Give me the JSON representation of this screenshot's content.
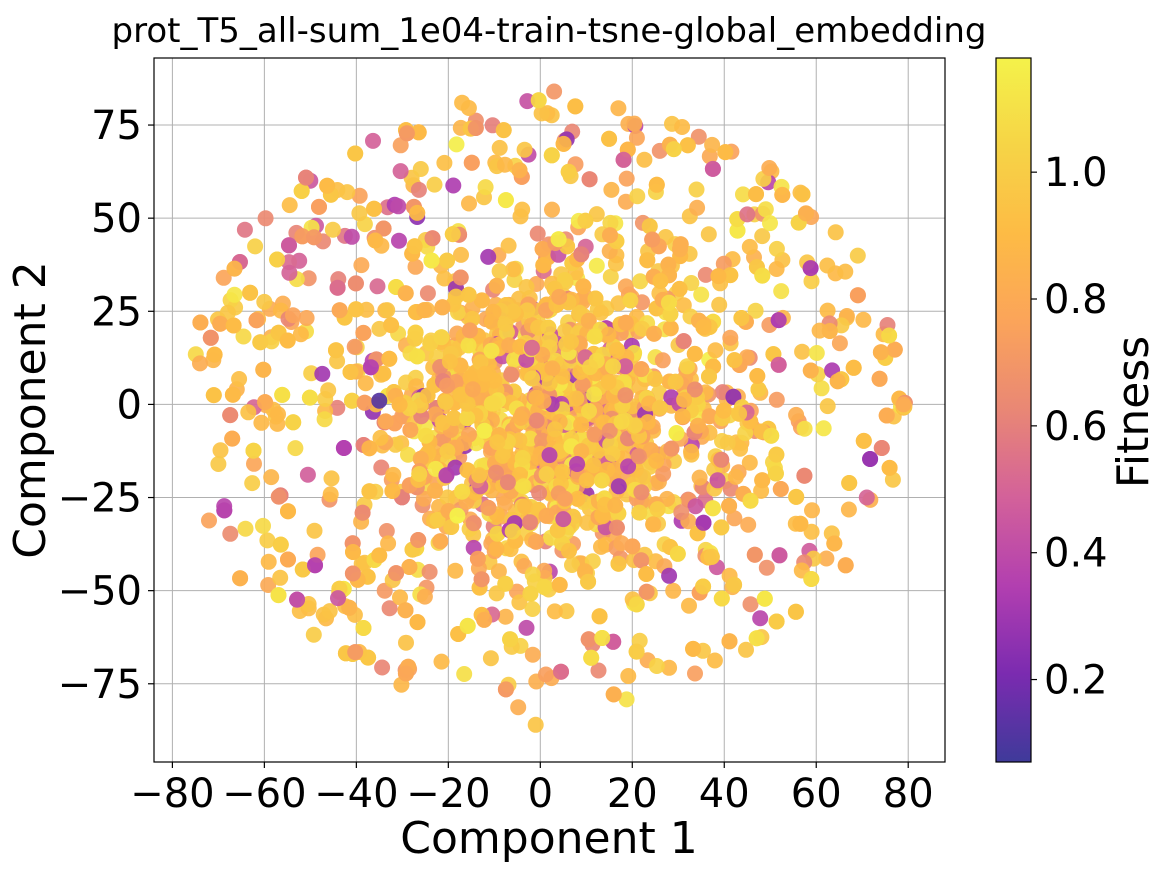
{
  "chart_data": {
    "type": "scatter",
    "title": "prot_T5_all-sum_1e04-train-tsne-global_embedding",
    "xlabel": "Component 1",
    "ylabel": "Component 2",
    "xlim": [
      -84,
      88
    ],
    "ylim": [
      -96,
      93
    ],
    "xticks": [
      -80,
      -60,
      -40,
      -20,
      0,
      20,
      40,
      60,
      80
    ],
    "xtick_labels": [
      "−80",
      "−60",
      "−40",
      "−20",
      "0",
      "20",
      "40",
      "60",
      "80"
    ],
    "yticks": [
      -75,
      -50,
      -25,
      0,
      25,
      50,
      75
    ],
    "ytick_labels": [
      "−75",
      "−50",
      "−25",
      "0",
      "25",
      "50",
      "75"
    ],
    "grid": true,
    "colorbar": {
      "label": "Fitness",
      "range": [
        0.07,
        1.18
      ],
      "ticks": [
        0.2,
        0.4,
        0.6,
        0.8,
        1.0
      ],
      "tick_labels": [
        "0.2",
        "0.4",
        "0.6",
        "0.8",
        "1.0"
      ],
      "colormap": "plasma-clipped",
      "colors": [
        "#3f3a9a",
        "#7b2bb0",
        "#b23fb0",
        "#d3619a",
        "#e98775",
        "#fba45a",
        "#fdbb45",
        "#f6d446",
        "#f4f24a"
      ]
    },
    "point_count_approx": 2400,
    "points_summary": "dense roughly circular cloud centred near (0, 0) spanning x -75 to 80 and y -87 to 85; most fitness values 0.8-1.05; low-fitness (dark purple) points scattered, e.g. near (-35, 1), (-41, 45), (8, -16), (28, -46)",
    "points": [
      [
        -35,
        1,
        0.12
      ],
      [
        -41,
        45,
        0.4
      ],
      [
        8,
        -16,
        0.35
      ],
      [
        28,
        -46,
        0.3
      ],
      [
        -1,
        -86,
        0.95
      ],
      [
        3,
        84,
        0.7
      ],
      [
        -17,
        81,
        0.9
      ],
      [
        79,
        0,
        0.8
      ],
      [
        -74,
        11,
        0.82
      ],
      [
        -70,
        -16,
        0.98
      ],
      [
        71,
        -25,
        0.5
      ],
      [
        45,
        51,
        0.55
      ],
      [
        -42,
        57,
        0.95
      ],
      [
        -23,
        59,
        1.0
      ],
      [
        -3,
        -60,
        0.4
      ],
      [
        -44,
        -52,
        0.45
      ]
    ]
  }
}
